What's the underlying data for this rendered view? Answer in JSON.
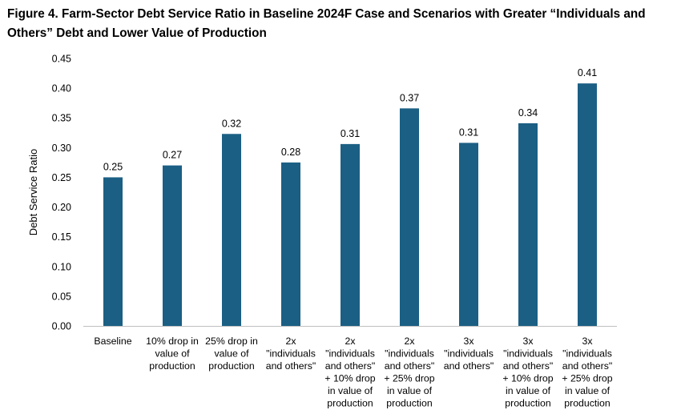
{
  "chart_data": {
    "type": "bar",
    "title": "Figure 4. Farm-Sector Debt Service Ratio in Baseline 2024F Case and Scenarios with Greater “Individuals and Others” Debt and Lower Value of Production",
    "xlabel": "",
    "ylabel": "Debt Service Ratio",
    "ylim": [
      0,
      0.45
    ],
    "yticks": [
      "0.00",
      "0.05",
      "0.10",
      "0.15",
      "0.20",
      "0.25",
      "0.30",
      "0.35",
      "0.40",
      "0.45"
    ],
    "grid": false,
    "legend": "none",
    "bar_color": "#1b5f84",
    "categories": [
      [
        "Baseline"
      ],
      [
        "10% drop in",
        "value of",
        "production"
      ],
      [
        "25% drop in",
        "value of",
        "production"
      ],
      [
        "2x",
        "\"individuals",
        "and others\""
      ],
      [
        "2x",
        "\"individuals",
        "and others\"",
        "+ 10% drop",
        "in value of",
        "production"
      ],
      [
        "2x",
        "\"individuals",
        "and others\"",
        "+ 25% drop",
        "in value of",
        "production"
      ],
      [
        "3x",
        "\"individuals",
        "and others\""
      ],
      [
        "3x",
        "\"individuals",
        "and others\"",
        "+ 10% drop",
        "in value of",
        "production"
      ],
      [
        "3x",
        "\"individuals",
        "and others\"",
        "+ 25% drop",
        "in value of",
        "production"
      ]
    ],
    "values": [
      0.25,
      0.27,
      0.323,
      0.275,
      0.306,
      0.366,
      0.308,
      0.341,
      0.408
    ],
    "data_labels": [
      "0.25",
      "0.27",
      "0.32",
      "0.28",
      "0.31",
      "0.37",
      "0.31",
      "0.34",
      "0.41"
    ]
  }
}
